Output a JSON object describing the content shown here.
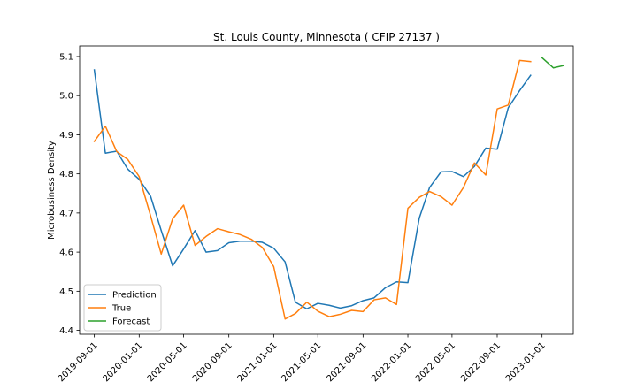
{
  "chart_data": {
    "type": "line",
    "title": "St. Louis County, Minnesota ( CFIP 27137 )",
    "xlabel": "",
    "ylabel": "Microbusiness Density",
    "xlim": [
      "2019-07-23",
      "2023-03-27"
    ],
    "ylim": [
      4.39,
      5.127
    ],
    "x_ticks": [
      "2019-09-01",
      "2020-01-01",
      "2020-05-01",
      "2020-09-01",
      "2021-01-01",
      "2021-05-01",
      "2021-09-01",
      "2022-01-01",
      "2022-05-01",
      "2022-09-01",
      "2023-01-01"
    ],
    "y_ticks": [
      "4.4",
      "4.5",
      "4.6",
      "4.7",
      "4.8",
      "4.9",
      "5.0",
      "5.1"
    ],
    "grid": false,
    "legend_position": "lower-left",
    "series": [
      {
        "name": "Prediction",
        "color": "#1f77b4",
        "points": [
          [
            "2019-09-01",
            5.066
          ],
          [
            "2019-10-01",
            4.853
          ],
          [
            "2019-11-01",
            4.858
          ],
          [
            "2019-12-01",
            4.812
          ],
          [
            "2020-01-01",
            4.786
          ],
          [
            "2020-02-01",
            4.743
          ],
          [
            "2020-03-01",
            4.655
          ],
          [
            "2020-04-01",
            4.565
          ],
          [
            "2020-05-01",
            4.608
          ],
          [
            "2020-06-01",
            4.655
          ],
          [
            "2020-07-01",
            4.6
          ],
          [
            "2020-08-01",
            4.604
          ],
          [
            "2020-09-01",
            4.624
          ],
          [
            "2020-10-01",
            4.628
          ],
          [
            "2020-11-01",
            4.628
          ],
          [
            "2020-12-01",
            4.625
          ],
          [
            "2021-01-01",
            4.61
          ],
          [
            "2021-02-01",
            4.575
          ],
          [
            "2021-03-01",
            4.472
          ],
          [
            "2021-04-01",
            4.455
          ],
          [
            "2021-05-01",
            4.469
          ],
          [
            "2021-06-01",
            4.464
          ],
          [
            "2021-07-01",
            4.457
          ],
          [
            "2021-08-01",
            4.463
          ],
          [
            "2021-09-01",
            4.476
          ],
          [
            "2021-10-01",
            4.483
          ],
          [
            "2021-11-01",
            4.509
          ],
          [
            "2021-12-01",
            4.524
          ],
          [
            "2022-01-01",
            4.522
          ],
          [
            "2022-02-01",
            4.687
          ],
          [
            "2022-03-01",
            4.765
          ],
          [
            "2022-04-01",
            4.805
          ],
          [
            "2022-05-01",
            4.806
          ],
          [
            "2022-06-01",
            4.793
          ],
          [
            "2022-07-01",
            4.819
          ],
          [
            "2022-08-01",
            4.866
          ],
          [
            "2022-09-01",
            4.863
          ],
          [
            "2022-10-01",
            4.969
          ],
          [
            "2022-11-01",
            5.013
          ],
          [
            "2022-12-01",
            5.052
          ]
        ]
      },
      {
        "name": "True",
        "color": "#ff7f0e",
        "points": [
          [
            "2019-09-01",
            4.883
          ],
          [
            "2019-10-01",
            4.922
          ],
          [
            "2019-11-01",
            4.857
          ],
          [
            "2019-12-01",
            4.837
          ],
          [
            "2020-01-01",
            4.793
          ],
          [
            "2020-02-01",
            4.693
          ],
          [
            "2020-03-01",
            4.595
          ],
          [
            "2020-04-01",
            4.685
          ],
          [
            "2020-05-01",
            4.72
          ],
          [
            "2020-06-01",
            4.617
          ],
          [
            "2020-07-01",
            4.64
          ],
          [
            "2020-08-01",
            4.66
          ],
          [
            "2020-09-01",
            4.652
          ],
          [
            "2020-10-01",
            4.645
          ],
          [
            "2020-11-01",
            4.633
          ],
          [
            "2020-12-01",
            4.612
          ],
          [
            "2021-01-01",
            4.563
          ],
          [
            "2021-02-01",
            4.429
          ],
          [
            "2021-03-01",
            4.443
          ],
          [
            "2021-04-01",
            4.472
          ],
          [
            "2021-05-01",
            4.449
          ],
          [
            "2021-06-01",
            4.435
          ],
          [
            "2021-07-01",
            4.441
          ],
          [
            "2021-08-01",
            4.451
          ],
          [
            "2021-09-01",
            4.448
          ],
          [
            "2021-10-01",
            4.478
          ],
          [
            "2021-11-01",
            4.483
          ],
          [
            "2021-12-01",
            4.466
          ],
          [
            "2022-01-01",
            4.712
          ],
          [
            "2022-02-01",
            4.74
          ],
          [
            "2022-03-01",
            4.755
          ],
          [
            "2022-04-01",
            4.742
          ],
          [
            "2022-05-01",
            4.72
          ],
          [
            "2022-06-01",
            4.765
          ],
          [
            "2022-07-01",
            4.828
          ],
          [
            "2022-08-01",
            4.797
          ],
          [
            "2022-09-01",
            4.966
          ],
          [
            "2022-10-01",
            4.976
          ],
          [
            "2022-11-01",
            5.09
          ],
          [
            "2022-12-01",
            5.087
          ]
        ]
      },
      {
        "name": "Forecast",
        "color": "#2ca02c",
        "points": [
          [
            "2023-01-01",
            5.097
          ],
          [
            "2023-02-01",
            5.071
          ],
          [
            "2023-03-01",
            5.077
          ]
        ]
      }
    ]
  }
}
